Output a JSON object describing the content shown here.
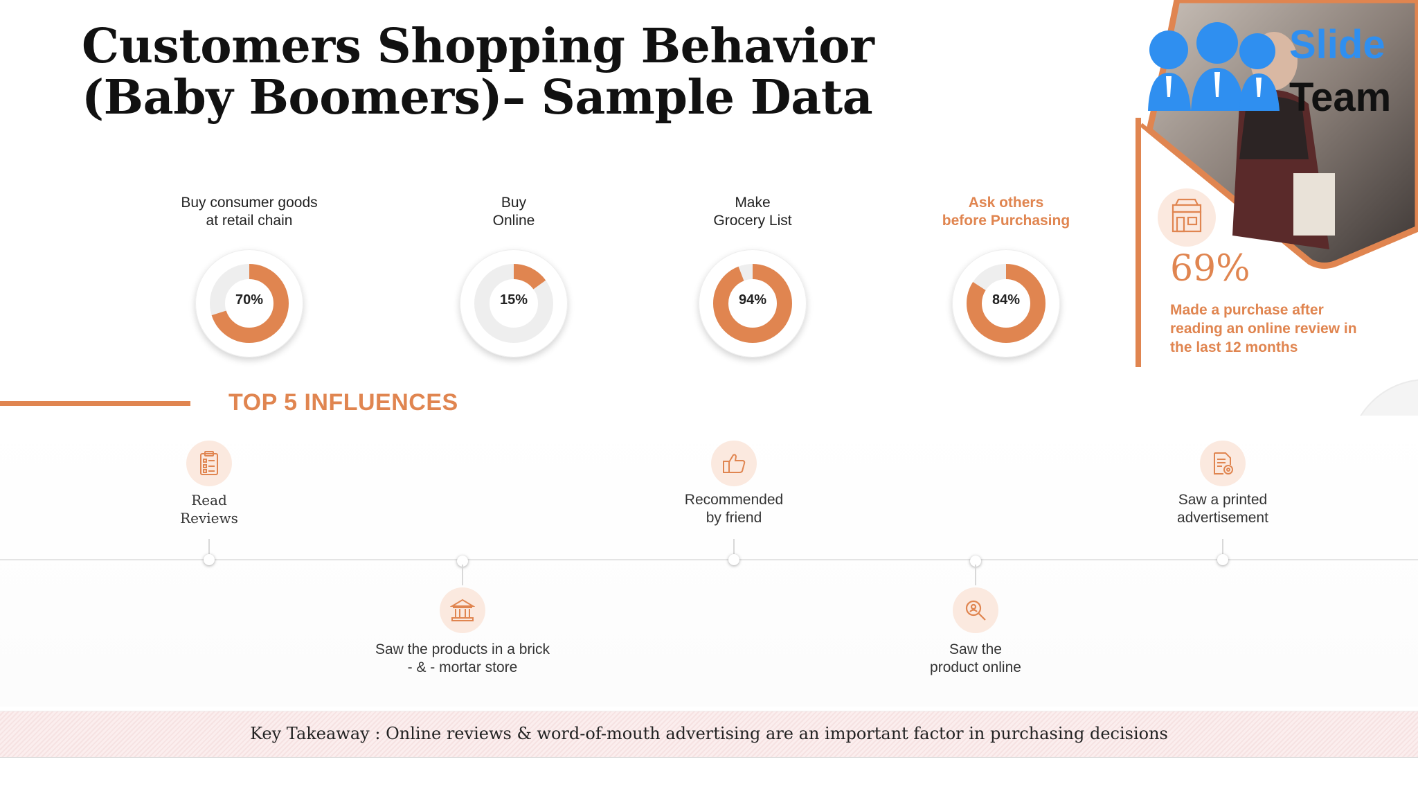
{
  "title": "Customers Shopping Behavior (Baby Boomers)– Sample Data",
  "stats": [
    {
      "label": "Buy consumer goods\nat retail chain",
      "value_text": "70%",
      "value": 70,
      "accent": false
    },
    {
      "label": "Buy\nOnline",
      "value_text": "15%",
      "value": 15,
      "accent": false
    },
    {
      "label": "Make\nGrocery List",
      "value_text": "94%",
      "value": 94,
      "accent": false
    },
    {
      "label": "Ask others\nbefore Purchasing",
      "value_text": "84%",
      "value": 84,
      "accent": true
    }
  ],
  "logo": {
    "line1": "Slide",
    "line2": "Team"
  },
  "side": {
    "icon": "store-icon",
    "percent": "69%",
    "text": "Made a purchase after reading an online review in the last 12 months"
  },
  "influences": {
    "title": "TOP 5 INFLUENCES",
    "items": [
      {
        "label": "Read\nReviews",
        "icon": "checklist-icon",
        "position": "above"
      },
      {
        "label": "Saw the products in a brick\n- & - mortar store",
        "icon": "bank-icon",
        "position": "below"
      },
      {
        "label": "Recommended\nby friend",
        "icon": "thumbs-up-icon",
        "position": "above"
      },
      {
        "label": "Saw the\nproduct online",
        "icon": "search-icon",
        "position": "below"
      },
      {
        "label": "Saw a printed\nadvertisement",
        "icon": "document-gear-icon",
        "position": "above"
      }
    ]
  },
  "takeaway": "Key Takeaway : Online reviews & word-of-mouth advertising are an important factor in purchasing decisions",
  "colors": {
    "accent": "#e08550",
    "track": "#eeeeee",
    "icon_bg": "#fbe9df",
    "logo_blue": "#2f8ff0"
  }
}
